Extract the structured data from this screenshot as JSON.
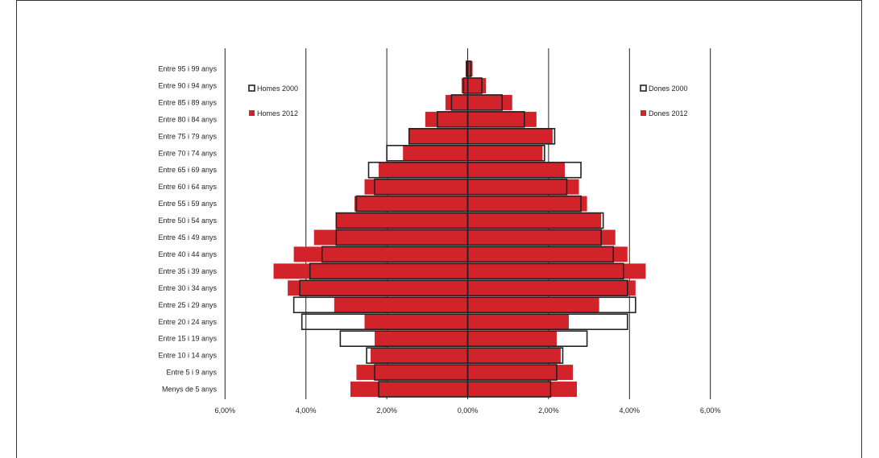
{
  "colors": {
    "red": "#d3232a",
    "outline": "#222222",
    "grid": "#222222"
  },
  "chart_data": {
    "type": "bar",
    "orientation": "horizontal-population-pyramid",
    "title": "",
    "xlabel": "",
    "ylabel": "",
    "xlim": [
      -6,
      6
    ],
    "xticks": [
      -6,
      -4,
      -2,
      0,
      2,
      4,
      6
    ],
    "xtick_labels": [
      "6,00%",
      "4,00%",
      "2,00%",
      "0,00%",
      "2,00%",
      "4,00%",
      "6,00%"
    ],
    "grid": "vertical",
    "categories": [
      "Entre 95 i 99 anys",
      "Entre 90 i 94 anys",
      "Entre 85 i 89 anys",
      "Entre 80 i 84 anys",
      "Entre 75 i 79 anys",
      "Entre 70 i 74 anys",
      "Entre 65 i 69 anys",
      "Entre 60 i 64 anys",
      "Entre 55 i 59 anys",
      "Entre 50 i 54 anys",
      "Entre 45 i 49 anys",
      "Entre 40 i 44 anys",
      "Entre 35 i 39 anys",
      "Entre 30 i 34 anys",
      "Entre 25 i 29 anys",
      "Entre 20 i 24 anys",
      "Entre 15 i 19 anys",
      "Entre 10 i 14 anys",
      "Entre 5 i 9 anys",
      "Menys de 5 anys"
    ],
    "series": [
      {
        "name": "Homes 2012",
        "side": "left",
        "style": "filled",
        "values": [
          0.05,
          0.15,
          0.55,
          1.05,
          1.45,
          1.6,
          2.2,
          2.55,
          2.8,
          3.25,
          3.8,
          4.3,
          4.8,
          4.45,
          3.3,
          2.55,
          2.3,
          2.4,
          2.75,
          2.9
        ]
      },
      {
        "name": "Dones 2012",
        "side": "right",
        "style": "filled",
        "values": [
          0.12,
          0.45,
          1.1,
          1.7,
          2.1,
          1.85,
          2.4,
          2.75,
          2.95,
          3.3,
          3.65,
          3.95,
          4.4,
          4.15,
          3.25,
          2.5,
          2.2,
          2.3,
          2.6,
          2.7
        ]
      },
      {
        "name": "Homes 2000",
        "side": "left",
        "style": "outline",
        "values": [
          0.03,
          0.1,
          0.4,
          0.75,
          1.45,
          2.0,
          2.45,
          2.3,
          2.75,
          3.25,
          3.25,
          3.6,
          3.9,
          4.15,
          4.3,
          4.1,
          3.15,
          2.5,
          2.3,
          2.2
        ]
      },
      {
        "name": "Dones 2000",
        "side": "right",
        "style": "outline",
        "values": [
          0.08,
          0.35,
          0.85,
          1.4,
          2.15,
          1.9,
          2.8,
          2.45,
          2.8,
          3.35,
          3.3,
          3.6,
          3.85,
          3.95,
          4.15,
          3.95,
          2.95,
          2.35,
          2.2,
          2.05
        ]
      }
    ],
    "legend": [
      {
        "label": "Homes 2000",
        "style": "outline",
        "placement": "top-left"
      },
      {
        "label": "Homes 2012",
        "style": "filled",
        "placement": "top-left"
      },
      {
        "label": "Dones 2000",
        "style": "outline",
        "placement": "top-right"
      },
      {
        "label": "Dones 2012",
        "style": "filled",
        "placement": "top-right"
      }
    ]
  }
}
